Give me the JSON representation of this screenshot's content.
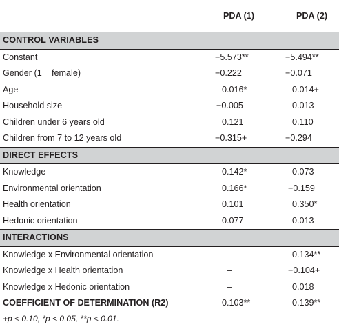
{
  "header": {
    "col1": "",
    "col2": "PDA (1)",
    "col3": "PDA (2)"
  },
  "sections": [
    {
      "title": "CONTROL VARIABLES",
      "rows": [
        {
          "label": "Constant",
          "v1": "−5.573**",
          "v2": "−5.494**"
        },
        {
          "label": "Gender (1 = female)",
          "v1": "−0.222",
          "v2": "−0.071"
        },
        {
          "label": "Age",
          "v1": "0.016*",
          "v2": "0.014+"
        },
        {
          "label": "Household size",
          "v1": "−0.005",
          "v2": "0.013"
        },
        {
          "label": "Children under 6 years old",
          "v1": "0.121",
          "v2": "0.110"
        },
        {
          "label": "Children from 7 to 12 years old",
          "v1": "−0.315+",
          "v2": "−0.294"
        }
      ]
    },
    {
      "title": "DIRECT EFFECTS",
      "rows": [
        {
          "label": "Knowledge",
          "v1": "0.142*",
          "v2": "0.073"
        },
        {
          "label": "Environmental orientation",
          "v1": "0.166*",
          "v2": "−0.159"
        },
        {
          "label": "Health orientation",
          "v1": "0.101",
          "v2": "0.350*"
        },
        {
          "label": "Hedonic orientation",
          "v1": "0.077",
          "v2": "0.013"
        }
      ]
    },
    {
      "title": "INTERACTIONS",
      "rows": [
        {
          "label": "Knowledge x Environmental orientation",
          "v1": "–",
          "v2": "0.134**"
        },
        {
          "label": "Knowledge x Health orientation",
          "v1": "–",
          "v2": "−0.104+"
        },
        {
          "label": "Knowledge x Hedonic orientation",
          "v1": "–",
          "v2": "0.018"
        }
      ]
    }
  ],
  "coefficient": {
    "label": "COEFFICIENT OF DETERMINATION (R2)",
    "v1": "0.103**",
    "v2": "0.139**"
  },
  "footnote": "+p < 0.10, *p < 0.05, **p < 0.01."
}
